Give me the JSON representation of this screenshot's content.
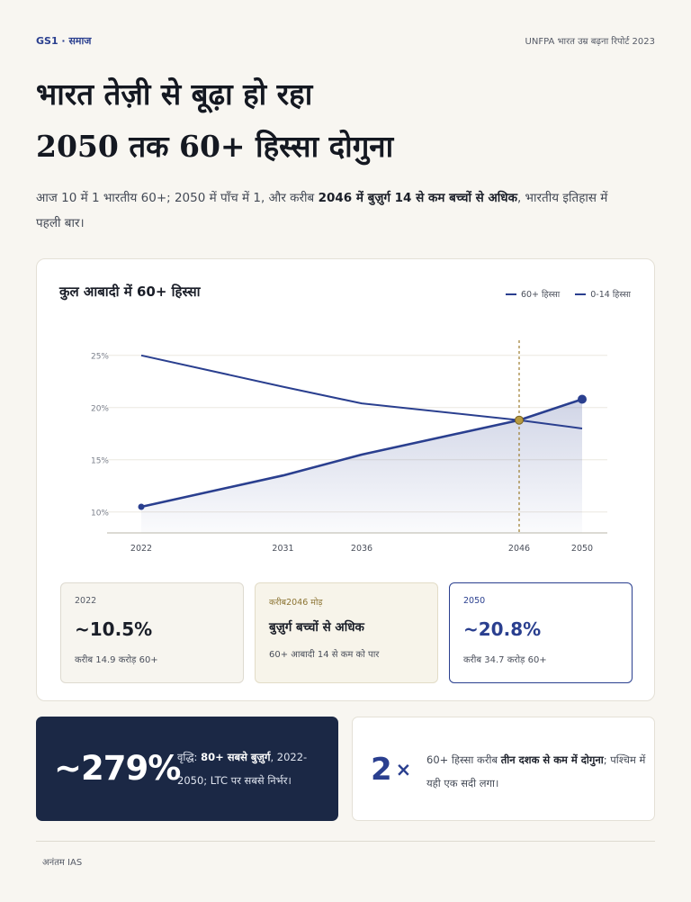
{
  "header": {
    "tag": "GS1 · समाज",
    "source": "UNFPA भारत उम्र बढ़ना रिपोर्ट 2023"
  },
  "headline": {
    "line1": "भारत तेज़ी से बूढ़ा हो रहा",
    "line2": "2050 तक 60+ हिस्सा दोगुना"
  },
  "lede": {
    "pre": "आज 10 में 1 भारतीय 60+; 2050 में पाँच में 1, और करीब ",
    "bold": "2046 में बुज़ुर्ग 14 से कम बच्चों से अधिक",
    "post": ", भारतीय इतिहास में पहली बार।"
  },
  "chart_card": {
    "title": "कुल आबादी में 60+ हिस्सा",
    "legend": [
      "60+ हिस्सा",
      "0-14 हिस्सा"
    ]
  },
  "chart_data": {
    "type": "area",
    "x_ticks": [
      2022,
      2031,
      2036,
      2046,
      2050
    ],
    "xlim": [
      2022,
      2050
    ],
    "y_ticks": [
      "10%",
      "15%",
      "20%",
      "25%"
    ],
    "ylim": [
      8,
      28
    ],
    "grid": true,
    "legend_position": "top-right",
    "series": [
      {
        "name": "60+ हिस्सा",
        "x": [
          2022,
          2031,
          2036,
          2046,
          2050
        ],
        "values": [
          10.5,
          13.5,
          15.5,
          18.8,
          20.8
        ],
        "color": "#2a3f8f",
        "fill": true
      },
      {
        "name": "0-14 हिस्सा",
        "x": [
          2022,
          2031,
          2036,
          2046,
          2050
        ],
        "values": [
          25.0,
          22.0,
          20.4,
          18.8,
          18.0
        ],
        "color": "#2a3f8f",
        "fill": false
      }
    ],
    "crossover": {
      "x": 2046,
      "y": 18.8,
      "color": "#9c7d2e"
    },
    "end_marker": {
      "x": 2050,
      "y": 20.8
    },
    "start_marker": {
      "x": 2022,
      "y": 10.5
    }
  },
  "stats": [
    {
      "label": "2022",
      "value": "~10.5%",
      "sub": "करीब 14.9 करोड़ 60+"
    },
    {
      "label": "करीब2046 मोड़",
      "value": "बुज़ुर्ग बच्चों से अधिक",
      "sub": "60+ आबादी 14 से कम को पार"
    },
    {
      "label": "2050",
      "value": "~20.8%",
      "sub": "करीब 34.7 करोड़ 60+"
    }
  ],
  "dark_card": {
    "number": "~279%",
    "pre": "वृद्धि: ",
    "bold": "80+ सबसे बुज़ुर्ग",
    "post": ", 2022-2050; LTC पर सबसे निर्भर।"
  },
  "light_card": {
    "number": "2",
    "mult": "×",
    "pre": "60+ हिस्सा करीब ",
    "bold": "तीन दशक से कम में दोगुना",
    "post": "; पश्चिम में यही एक सदी लगा।"
  },
  "footer": "अनंतम IAS"
}
